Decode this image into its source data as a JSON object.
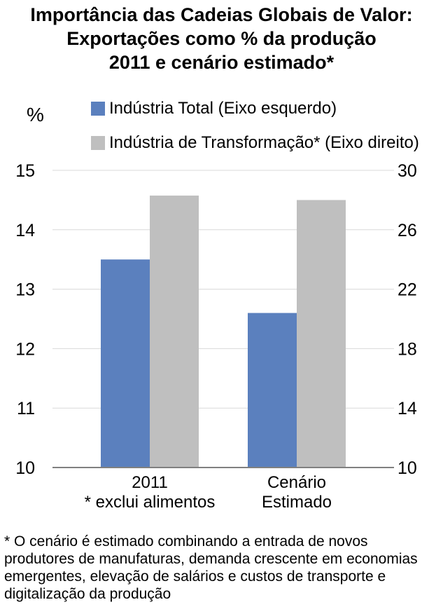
{
  "title": {
    "line1": "Importância das Cadeias Globais de Valor:",
    "line2": "Exportações como % da produção",
    "line3": "2011 e cenário estimado*"
  },
  "y_unit_label": "%",
  "footnote": "* O cenário é estimado combinando a entrada de novos produtores de manufaturas, demanda crescente em economias emergentes, elevação de salários e custos de transporte e digitalização da produção",
  "colors": {
    "series_total": "#5B80BE",
    "series_transformacao": "#BFBFBF",
    "axis": "#808080",
    "grid": "#D9D9D9"
  },
  "chart_data": {
    "type": "bar",
    "categories": [
      [
        "2011",
        "* exclui alimentos"
      ],
      [
        "Cenário",
        "Estimado"
      ]
    ],
    "series": [
      {
        "name": "Indústria Total (Eixo esquerdo)",
        "axis": "left",
        "values": [
          13.5,
          12.6
        ]
      },
      {
        "name": "Indústria de Transformação* (Eixo direito)",
        "axis": "right",
        "values": [
          28.3,
          28.0
        ]
      }
    ],
    "left_axis": {
      "ylim": [
        10,
        15
      ],
      "ticks": [
        "10",
        "11",
        "12",
        "13",
        "14",
        "15"
      ]
    },
    "right_axis": {
      "ylim": [
        10,
        30
      ],
      "ticks": [
        "10",
        "14",
        "18",
        "22",
        "26",
        "30"
      ]
    },
    "grid": true,
    "legend": "top"
  }
}
